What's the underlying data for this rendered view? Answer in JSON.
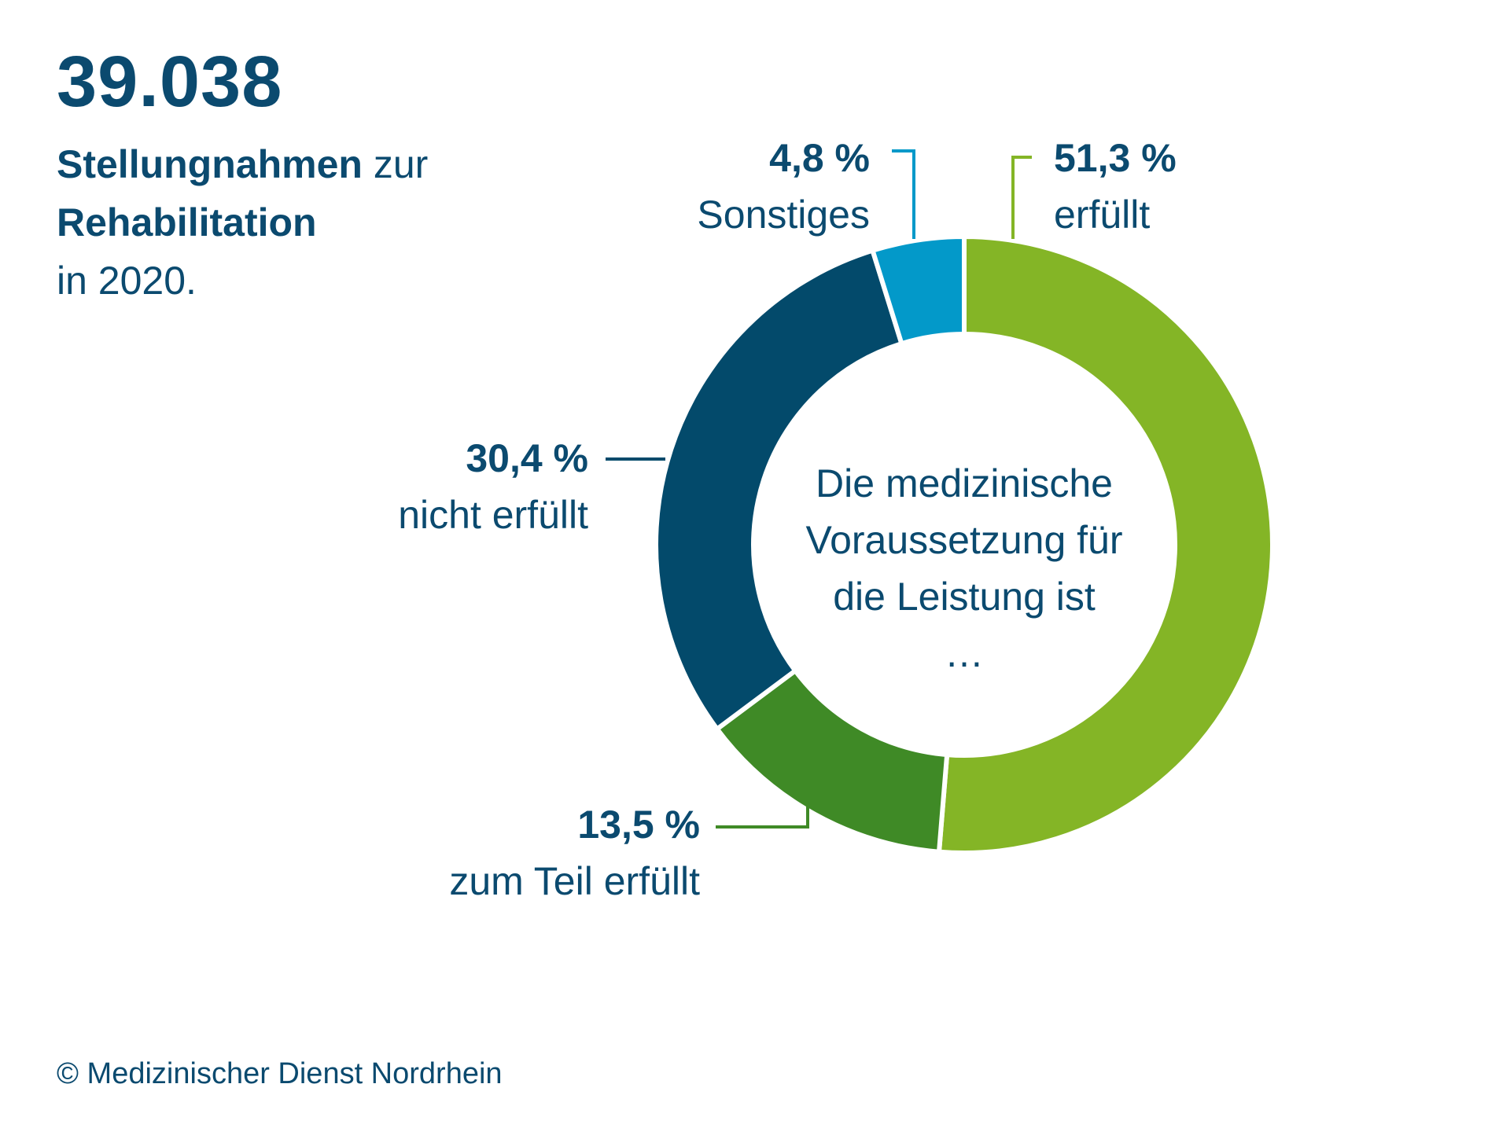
{
  "header": {
    "total": "39.038",
    "subtitle_bold1": "Stellungnahmen",
    "subtitle_text1": " zur",
    "subtitle_bold2": "Rehabilitation",
    "subtitle_text2": "in 2020."
  },
  "chart_data": {
    "type": "pie",
    "variant": "donut",
    "center_text": [
      "Die medizinische",
      "Voraussetzung für",
      "die Leistung ist",
      "…"
    ],
    "series": [
      {
        "name": "erfüllt",
        "value": 51.3,
        "value_label": "51,3 %",
        "color": "#84b526"
      },
      {
        "name": "zum Teil erfüllt",
        "value": 13.5,
        "value_label": "13,5 %",
        "color": "#3f8a26"
      },
      {
        "name": "nicht erfüllt",
        "value": 30.4,
        "value_label": "30,4 %",
        "color": "#034a6b"
      },
      {
        "name": "Sonstiges",
        "value": 4.8,
        "value_label": "4,8 %",
        "color": "#0399c9"
      }
    ]
  },
  "footer": {
    "copyright": "© Medizinischer Dienst Nordrhein"
  }
}
